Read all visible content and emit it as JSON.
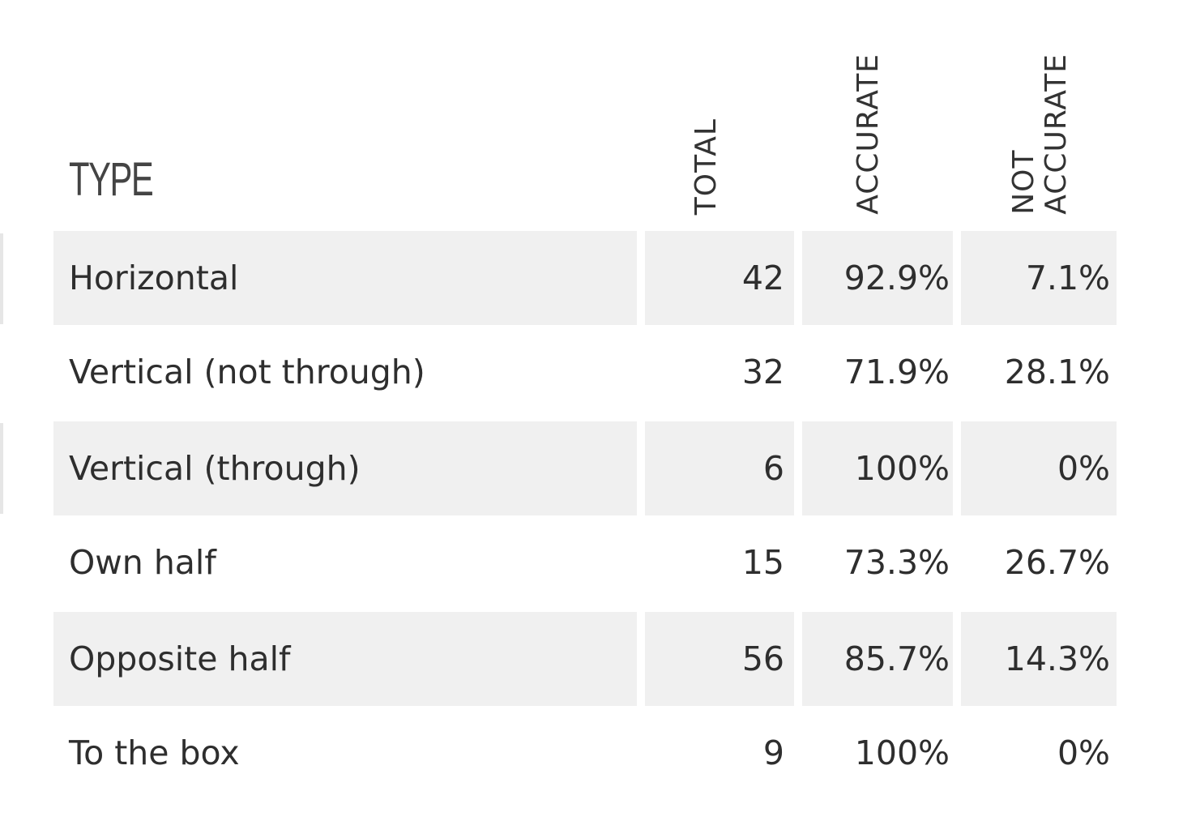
{
  "table": {
    "headers": {
      "type": "TYPE",
      "total": "TOTAL",
      "accurate": "ACCURATE",
      "not_accurate": "NOT\nACCURATE"
    },
    "rows": [
      {
        "type": "Horizontal",
        "total": "42",
        "accurate": "92.9%",
        "not_accurate": "7.1%"
      },
      {
        "type": "Vertical (not through)",
        "total": "32",
        "accurate": "71.9%",
        "not_accurate": "28.1%"
      },
      {
        "type": "Vertical (through)",
        "total": "6",
        "accurate": "100%",
        "not_accurate": "0%"
      },
      {
        "type": "Own half",
        "total": "15",
        "accurate": "73.3%",
        "not_accurate": "26.7%"
      },
      {
        "type": "Opposite half",
        "total": "56",
        "accurate": "85.7%",
        "not_accurate": "14.3%"
      },
      {
        "type": "To the box",
        "total": "9",
        "accurate": "100%",
        "not_accurate": "0%"
      }
    ]
  },
  "colors": {
    "row_shade": "#f0f0f0",
    "text": "#2e2e2e",
    "background": "#ffffff"
  }
}
